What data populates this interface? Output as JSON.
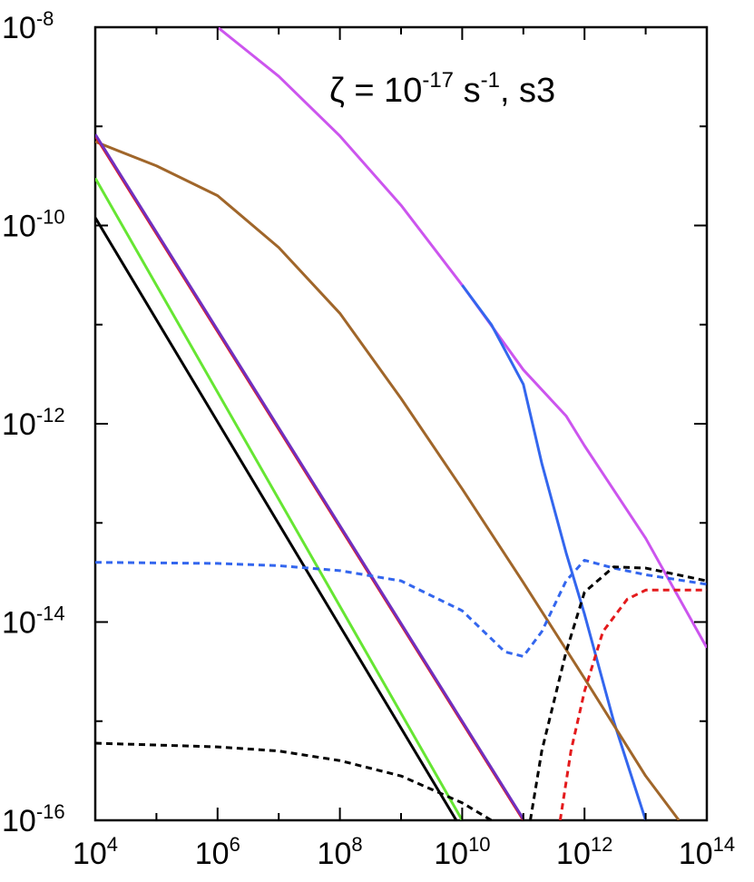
{
  "chart_data": {
    "type": "line",
    "title": "",
    "xlabel": "",
    "ylabel": "",
    "x_scale": "log",
    "y_scale": "log",
    "xlim": [
      10000.0,
      100000000000000.0
    ],
    "ylim": [
      1e-16,
      1e-08
    ],
    "grid": false,
    "legend": "none",
    "x_ticks": [
      {
        "base": "10",
        "exp": "4",
        "value": 10000.0
      },
      {
        "base": "10",
        "exp": "6",
        "value": 1000000.0
      },
      {
        "base": "10",
        "exp": "8",
        "value": 100000000.0
      },
      {
        "base": "10",
        "exp": "10",
        "value": 10000000000.0
      },
      {
        "base": "10",
        "exp": "12",
        "value": 1000000000000.0
      },
      {
        "base": "10",
        "exp": "14",
        "value": 100000000000000.0
      }
    ],
    "y_ticks": [
      {
        "base": "10",
        "exp": "-8",
        "value": 1e-08
      },
      {
        "base": "10",
        "exp": "-10",
        "value": 1e-10
      },
      {
        "base": "10",
        "exp": "-12",
        "value": 1e-12
      },
      {
        "base": "10",
        "exp": "-14",
        "value": 1e-14
      },
      {
        "base": "10",
        "exp": "-16",
        "value": 1e-16
      }
    ],
    "annotation": {
      "lhs": "ζ = 10",
      "exp1": "-17",
      "mid": " s",
      "exp2": "-1",
      "rhs": ", s3"
    },
    "series": [
      {
        "color": "#cc55ee",
        "dash": "solid",
        "points": [
          [
            1000000.0,
            1e-08
          ],
          [
            10000000.0,
            3.2e-09
          ],
          [
            100000000.0,
            8e-10
          ],
          [
            1000000000.0,
            1.6e-10
          ],
          [
            10000000000.0,
            2.5e-11
          ],
          [
            100000000000.0,
            3.5e-12
          ],
          [
            500000000000.0,
            1.2e-12
          ],
          [
            1000000000000.0,
            6e-13
          ],
          [
            10000000000000.0,
            7e-14
          ],
          [
            100000000000000.0,
            5.5e-15
          ]
        ]
      },
      {
        "color": "#3366ee",
        "dash": "solid",
        "points": [
          [
            10000000000.0,
            2.5e-11
          ],
          [
            30000000000.0,
            1e-11
          ],
          [
            100000000000.0,
            2.5e-12
          ],
          [
            200000000000.0,
            4e-13
          ],
          [
            500000000000.0,
            5e-14
          ],
          [
            1000000000000.0,
            1.2e-14
          ],
          [
            3000000000000.0,
            1e-15
          ],
          [
            10000000000000.0,
            1e-16
          ]
        ]
      },
      {
        "color": "#a0662a",
        "dash": "solid",
        "points": [
          [
            10000.0,
            7e-10
          ],
          [
            100000.0,
            4e-10
          ],
          [
            1000000.0,
            2e-10
          ],
          [
            10000000.0,
            6e-11
          ],
          [
            100000000.0,
            1.3e-11
          ],
          [
            1000000000.0,
            1.8e-12
          ],
          [
            10000000000.0,
            2.2e-13
          ],
          [
            100000000000.0,
            2.5e-14
          ],
          [
            1000000000000.0,
            2.7e-15
          ],
          [
            10000000000000.0,
            2.8e-16
          ],
          [
            35000000000000.0,
            1e-16
          ]
        ]
      },
      {
        "color": "#e41a1c",
        "dash": "solid",
        "points": [
          [
            10000.0,
            8e-10
          ],
          [
            100000000000.0,
            1e-16
          ]
        ]
      },
      {
        "color": "#7030c0",
        "dash": "solid",
        "points": [
          [
            10000.0,
            8.3e-10
          ],
          [
            100000000000.0,
            1.03e-16
          ]
        ]
      },
      {
        "color": "#66e633",
        "dash": "solid",
        "points": [
          [
            10000.0,
            3e-10
          ],
          [
            10000000000.0,
            1e-16
          ]
        ]
      },
      {
        "color": "#000000",
        "dash": "solid",
        "points": [
          [
            10000.0,
            1.2e-10
          ],
          [
            8000000000.0,
            1e-16
          ]
        ]
      },
      {
        "color": "#3366ee",
        "dash": "dash",
        "points": [
          [
            10000.0,
            4e-14
          ],
          [
            1000000.0,
            3.9e-14
          ],
          [
            10000000.0,
            3.7e-14
          ],
          [
            100000000.0,
            3.3e-14
          ],
          [
            1000000000.0,
            2.6e-14
          ],
          [
            10000000000.0,
            1.3e-14
          ],
          [
            50000000000.0,
            5e-15
          ],
          [
            100000000000.0,
            4.5e-15
          ],
          [
            200000000000.0,
            8e-15
          ],
          [
            500000000000.0,
            2.6e-14
          ],
          [
            1000000000000.0,
            4.2e-14
          ],
          [
            3000000000000.0,
            3.5e-14
          ],
          [
            10000000000000.0,
            3e-14
          ],
          [
            100000000000000.0,
            2.4e-14
          ]
        ]
      },
      {
        "color": "#000000",
        "dash": "dash",
        "points": [
          [
            10000.0,
            6e-16
          ],
          [
            1000000.0,
            5.5e-16
          ],
          [
            10000000.0,
            5e-16
          ],
          [
            100000000.0,
            4e-16
          ],
          [
            1000000000.0,
            2.8e-16
          ],
          [
            10000000000.0,
            1.5e-16
          ],
          [
            30000000000.0,
            1e-16
          ]
        ]
      },
      {
        "color": "#000000",
        "dash": "dash",
        "points": [
          [
            130000000000.0,
            1e-16
          ],
          [
            200000000000.0,
            5e-16
          ],
          [
            500000000000.0,
            5e-15
          ],
          [
            1000000000000.0,
            2e-14
          ],
          [
            3000000000000.0,
            3.6e-14
          ],
          [
            10000000000000.0,
            3.5e-14
          ],
          [
            100000000000000.0,
            2.6e-14
          ]
        ]
      },
      {
        "color": "#e41a1c",
        "dash": "dash",
        "points": [
          [
            400000000000.0,
            1e-16
          ],
          [
            600000000000.0,
            5e-16
          ],
          [
            1000000000000.0,
            2e-15
          ],
          [
            2000000000000.0,
            8e-15
          ],
          [
            5000000000000.0,
            1.7e-14
          ],
          [
            10000000000000.0,
            2.1e-14
          ],
          [
            100000000000000.0,
            2.1e-14
          ]
        ]
      }
    ]
  }
}
